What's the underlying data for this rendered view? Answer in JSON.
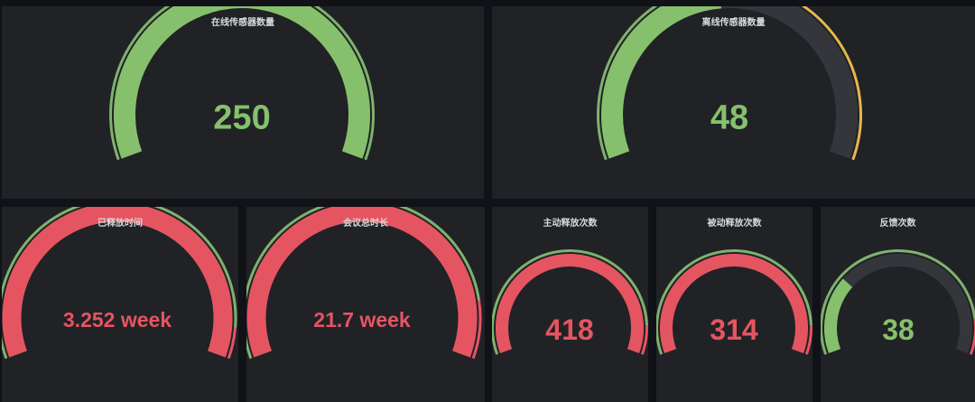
{
  "colors": {
    "green": "#7eb26d",
    "green_fill": "#86c06c",
    "red": "#e55561",
    "yellow": "#e5b84c",
    "track": "#34363b",
    "panel_bg": "#202226"
  },
  "panels": [
    {
      "id": "online-sensors",
      "title": "在线传感器数量",
      "value": "250",
      "fill_fraction": 1.0,
      "value_color": "#86c06c",
      "fill_color": "#86c06c",
      "threshold": {
        "segments": [
          {
            "to": 1.0,
            "color": "#7eb26d"
          }
        ]
      }
    },
    {
      "id": "offline-sensors",
      "title": "离线传感器数量",
      "value": "48",
      "fill_fraction": 0.48,
      "value_color": "#86c06c",
      "fill_color": "#86c06c",
      "threshold": {
        "segments": [
          {
            "to": 0.48,
            "color": "#7eb26d"
          },
          {
            "to": 1.0,
            "color": "#e5b84c"
          }
        ]
      }
    },
    {
      "id": "released-time",
      "title": "已释放时间",
      "value": "3.252 week",
      "fill_fraction": 1.0,
      "value_color": "#e55561",
      "fill_color": "#e55561",
      "threshold": {
        "segments": [
          {
            "to": 0.93,
            "color": "#7eb26d"
          },
          {
            "to": 1.0,
            "color": "#e55561"
          }
        ]
      }
    },
    {
      "id": "meeting-duration",
      "title": "会议总时长",
      "value": "21.7 week",
      "fill_fraction": 1.0,
      "value_color": "#e55561",
      "fill_color": "#e55561",
      "threshold": {
        "segments": [
          {
            "to": 0.87,
            "color": "#7eb26d"
          },
          {
            "to": 1.0,
            "color": "#e55561"
          }
        ]
      }
    },
    {
      "id": "active-release-count",
      "title": "主动释放次数",
      "value": "418",
      "fill_fraction": 1.0,
      "value_color": "#e55561",
      "fill_color": "#e55561",
      "threshold": {
        "segments": [
          {
            "to": 0.9,
            "color": "#7eb26d"
          },
          {
            "to": 1.0,
            "color": "#e55561"
          }
        ]
      }
    },
    {
      "id": "passive-release-count",
      "title": "被动释放次数",
      "value": "314",
      "fill_fraction": 1.0,
      "value_color": "#e55561",
      "fill_color": "#e55561",
      "threshold": {
        "segments": [
          {
            "to": 0.9,
            "color": "#7eb26d"
          },
          {
            "to": 1.0,
            "color": "#e55561"
          }
        ]
      }
    },
    {
      "id": "feedback-count",
      "title": "反馈次数",
      "value": "38",
      "fill_fraction": 0.28,
      "value_color": "#86c06c",
      "fill_color": "#86c06c",
      "threshold": {
        "segments": [
          {
            "to": 0.88,
            "color": "#7eb26d"
          },
          {
            "to": 1.0,
            "color": "#e55561"
          }
        ]
      }
    }
  ]
}
